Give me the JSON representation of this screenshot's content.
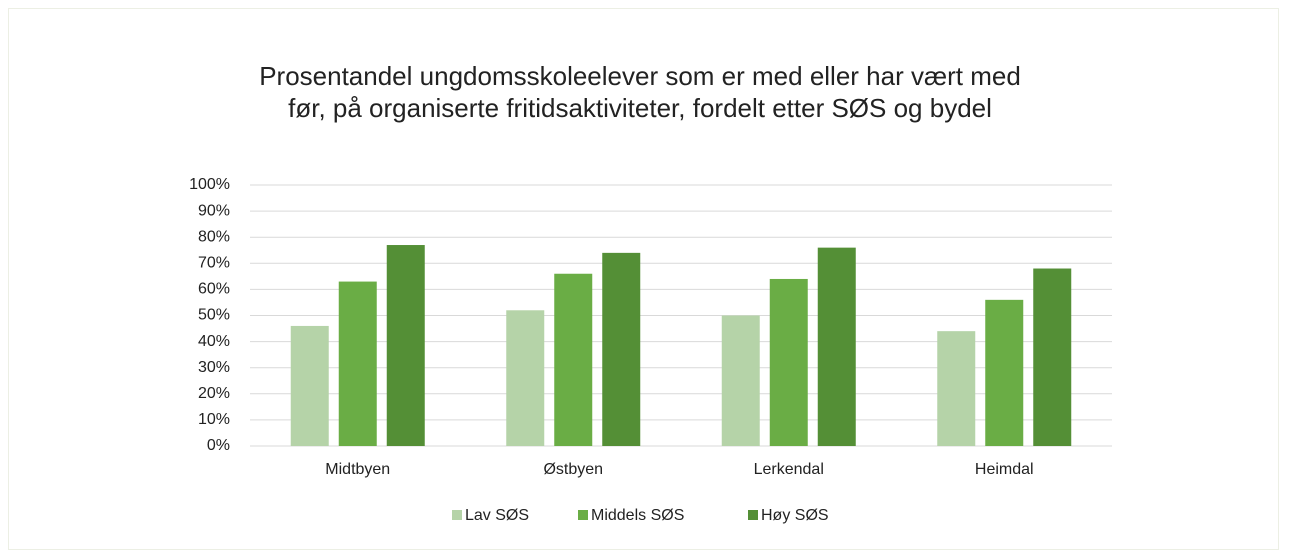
{
  "chart_data": {
    "type": "bar",
    "title": "Prosentandel ungdomsskoleelever som er med eller har vært med før, på organiserte fritidsaktiviteter, fordelt etter SØS og bydel",
    "categories": [
      "Midtbyen",
      "Østbyen",
      "Lerkendal",
      "Heimdal"
    ],
    "series": [
      {
        "name": "Lav SØS",
        "color": "#b5d3a8",
        "values": [
          46,
          52,
          50,
          44
        ]
      },
      {
        "name": "Middels SØS",
        "color": "#6aad45",
        "values": [
          63,
          66,
          64,
          56
        ]
      },
      {
        "name": "Høy SØS",
        "color": "#548f36",
        "values": [
          77,
          74,
          76,
          68
        ]
      }
    ],
    "ylim": [
      0,
      100
    ],
    "yticks": [
      {
        "value": 0,
        "label": "0%"
      },
      {
        "value": 10,
        "label": "10%"
      },
      {
        "value": 20,
        "label": "20%"
      },
      {
        "value": 30,
        "label": "30%"
      },
      {
        "value": 40,
        "label": "40%"
      },
      {
        "value": 50,
        "label": "50%"
      },
      {
        "value": 60,
        "label": "60%"
      },
      {
        "value": 70,
        "label": "70%"
      },
      {
        "value": 80,
        "label": "80%"
      },
      {
        "value": 90,
        "label": "90%"
      },
      {
        "value": 100,
        "label": "100%"
      }
    ],
    "grid": true,
    "legend": "bottom"
  }
}
